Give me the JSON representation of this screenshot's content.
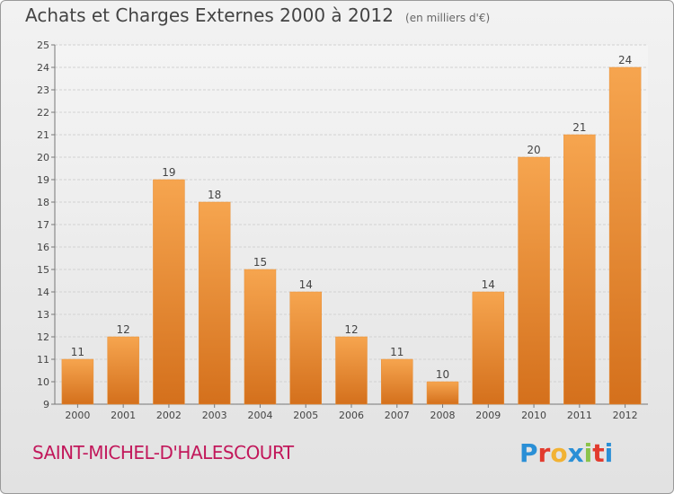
{
  "chart_data": {
    "type": "bar",
    "title": "Achats et Charges Externes 2000 à 2012",
    "subtitle": "(en milliers d'€)",
    "categories": [
      "2000",
      "2001",
      "2002",
      "2003",
      "2004",
      "2005",
      "2006",
      "2007",
      "2008",
      "2009",
      "2010",
      "2011",
      "2012"
    ],
    "values": [
      11,
      12,
      19,
      18,
      15,
      14,
      12,
      11,
      10,
      14,
      20,
      21,
      24
    ],
    "ylim": [
      9,
      25
    ],
    "yticks": [
      9,
      10,
      11,
      12,
      13,
      14,
      15,
      16,
      17,
      18,
      19,
      20,
      21,
      22,
      23,
      24,
      25
    ],
    "grid": true,
    "bar_color_top": "#f6a54f",
    "bar_color_bottom": "#d4701c"
  },
  "footer": {
    "commune": "SAINT-MICHEL-D'HALESCOURT",
    "brand": "Proxiti",
    "brand_colors": [
      "#2a8fd6",
      "#e23b2e",
      "#f2b233",
      "#2a8fd6",
      "#8bc34a",
      "#e23b2e",
      "#2a8fd6"
    ]
  }
}
